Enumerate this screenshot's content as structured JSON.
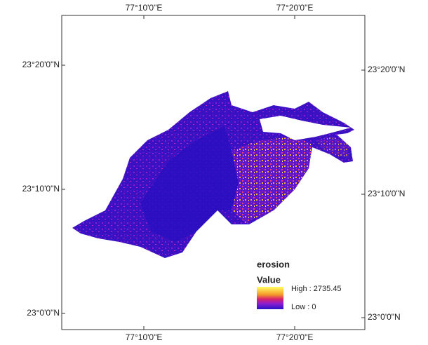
{
  "map": {
    "top_labels": [
      "77°10'0\"E",
      "77°20'0\"E"
    ],
    "bottom_labels": [
      "77°10'0\"E",
      "77°20'0\"E"
    ],
    "left_labels": [
      "23°20'0\"N",
      "23°10'0\"N",
      "23°0'0\"N"
    ],
    "right_labels": [
      "23°20'0\"N",
      "23°10'0\"N",
      "23°0'0\"N"
    ],
    "legend": {
      "title": "erosion",
      "subtitle": "Value",
      "high": "High : 2735.45",
      "low": "Low : 0"
    }
  }
}
